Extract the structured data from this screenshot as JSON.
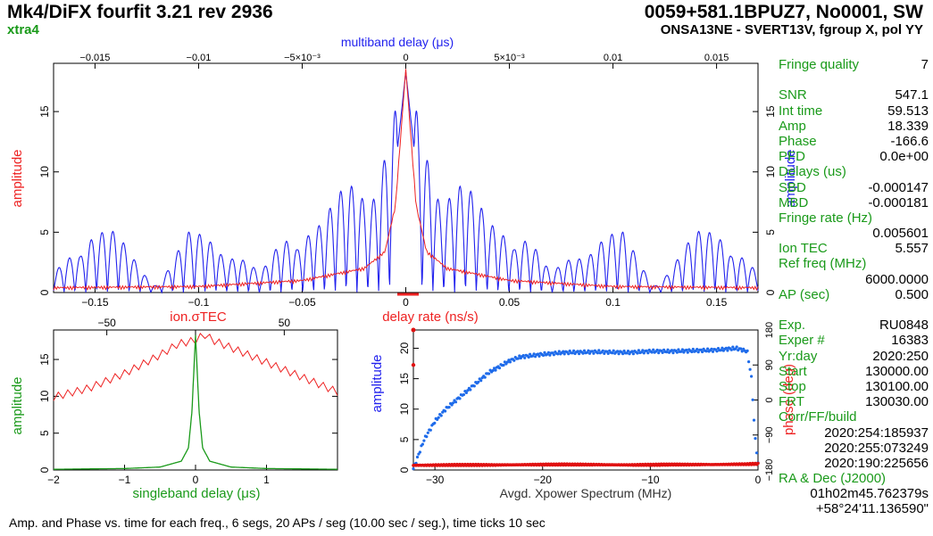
{
  "header": {
    "title": "Mk4/DiFX fourfit 3.21 rev 2936",
    "subtitle": "xtra4",
    "source": "0059+581.1BPUZ7, No0001, SW",
    "baseline": "ONSA13NE - SVERT13V, fgroup X, pol YY"
  },
  "footer": "Amp. and Phase vs. time for each freq., 6 segs, 20 APs / seg (10.00 sec / seg.), time ticks 10 sec",
  "colors": {
    "blue": "#2222ee",
    "red": "#ee2222",
    "green": "#1a9a1a",
    "mbd_bright": "#1e6bea",
    "phase_red": "#e01010"
  },
  "panel": {
    "rows": [
      {
        "label": "Fringe quality",
        "value": "7"
      },
      {
        "label": "",
        "value": ""
      },
      {
        "label": "SNR",
        "value": "547.1"
      },
      {
        "label": "Int time",
        "value": "59.513"
      },
      {
        "label": "Amp",
        "value": "18.339"
      },
      {
        "label": "Phase",
        "value": "-166.6"
      },
      {
        "label": "PFD",
        "value": "0.0e+00"
      },
      {
        "label": "Delays (us)",
        "value": ""
      },
      {
        "label": "SBD",
        "value": "-0.000147"
      },
      {
        "label": "MBD",
        "value": "-0.000181"
      },
      {
        "label": "Fringe rate (Hz)",
        "value": ""
      },
      {
        "label": "",
        "value": "0.005601"
      },
      {
        "label": "Ion TEC",
        "value": "5.557"
      },
      {
        "label": "Ref freq (MHz)",
        "value": ""
      },
      {
        "label": "",
        "value": "6000.0000"
      },
      {
        "label": "AP (sec)",
        "value": "0.500"
      },
      {
        "label": "",
        "value": ""
      },
      {
        "label": "Exp.",
        "value": "RU0848"
      },
      {
        "label": "Exper #",
        "value": "16383"
      },
      {
        "label": "Yr:day",
        "value": "2020:250"
      },
      {
        "label": "Start",
        "value": "130000.00"
      },
      {
        "label": "Stop",
        "value": "130100.00"
      },
      {
        "label": "FRT",
        "value": "130030.00"
      },
      {
        "label": "Corr/FF/build",
        "value": ""
      },
      {
        "label": "",
        "value": "2020:254:185937"
      },
      {
        "label": "",
        "value": "2020:255:073249"
      },
      {
        "label": "",
        "value": "2020:190:225656"
      },
      {
        "label": "RA & Dec (J2000)",
        "value": ""
      },
      {
        "label": "",
        "value": "01h02m45.762379s"
      },
      {
        "label": "",
        "value": "+58°24'11.136590\""
      }
    ]
  },
  "chart_data": [
    {
      "type": "line",
      "title": "",
      "xlabel": "delay rate (ns/s)",
      "x2label": "multiband delay (μs)",
      "ylabel": "amplitude",
      "y2label": "amplitude",
      "xlim": [
        -0.17,
        0.17
      ],
      "x2lim": [
        -0.017,
        0.017
      ],
      "ylim": [
        0,
        19
      ],
      "xticks": [
        "−0.15",
        "−0.1",
        "−0.05",
        "0",
        "0.05",
        "0.1",
        "0.15"
      ],
      "x2ticks": [
        "−0.015",
        "−0.01",
        "−5×10⁻³",
        "0",
        "5×10⁻³",
        "0.01",
        "0.015"
      ],
      "yticks": [
        "0",
        "5",
        "10",
        "15"
      ],
      "series": [
        {
          "color": "blue",
          "axis": "multiband delay",
          "peak": 18.3,
          "envelope_x": [
            -0.017,
            -0.0155,
            -0.014,
            -0.012,
            -0.0105,
            -0.009,
            -0.007,
            -0.0055,
            -0.004,
            -0.0025,
            -0.001,
            0,
            0.001,
            0.0025,
            0.004,
            0.0055,
            0.007,
            0.009,
            0.0105,
            0.012,
            0.014,
            0.0155,
            0.017
          ],
          "envelope_y": [
            1.5,
            6.0,
            5.0,
            0.8,
            5.0,
            5.2,
            1.5,
            6.5,
            6.0,
            10.5,
            13.5,
            18.3,
            13.5,
            10.5,
            6.0,
            6.5,
            1.5,
            5.2,
            5.0,
            0.8,
            5.0,
            6.0,
            1.5
          ]
        },
        {
          "color": "red",
          "axis": "delay rate",
          "peak": 18.3,
          "x": [
            -0.17,
            -0.1,
            -0.05,
            -0.02,
            -0.01,
            -0.005,
            0,
            0.005,
            0.01,
            0.02,
            0.05,
            0.1,
            0.17
          ],
          "y": [
            0.2,
            0.3,
            0.8,
            1.8,
            3.2,
            7.0,
            18.3,
            7.0,
            3.2,
            1.8,
            0.8,
            0.3,
            0.2
          ]
        }
      ]
    },
    {
      "type": "line",
      "title": "",
      "xlabel": "singleband delay (μs)",
      "x2label": "ion.σTEC",
      "ylabel": "amplitude",
      "xlim": [
        -2,
        2
      ],
      "x2lim": [
        -80,
        80
      ],
      "ylim": [
        0,
        19
      ],
      "xticks": [
        "−2",
        "−1",
        "0",
        "1"
      ],
      "x2ticks": [
        "−50",
        "0",
        "50"
      ],
      "yticks": [
        "0",
        "5",
        "10",
        "15"
      ],
      "series": [
        {
          "color": "green",
          "axis": "singleband delay",
          "x": [
            -2,
            -1,
            -0.5,
            -0.2,
            -0.1,
            -0.05,
            0,
            0.05,
            0.1,
            0.2,
            0.5,
            1,
            2
          ],
          "y": [
            0.1,
            0.2,
            0.4,
            1.2,
            3.0,
            8.0,
            18.3,
            8.0,
            3.0,
            1.2,
            0.4,
            0.2,
            0.1
          ]
        },
        {
          "color": "red",
          "axis": "ion TEC",
          "x": [
            -80,
            -60,
            -40,
            -20,
            -10,
            0,
            5,
            10,
            20,
            40,
            60,
            80
          ],
          "y": [
            9.8,
            11.0,
            13.0,
            15.5,
            17.0,
            17.5,
            18.3,
            17.5,
            16.5,
            14.5,
            12.5,
            10.5
          ]
        }
      ]
    },
    {
      "type": "scatter",
      "title": "",
      "xlabel": "Avgd. Xpower Spectrum (MHz)",
      "ylabel": "amplitude",
      "y2label": "phase (deg)",
      "xlim": [
        -32,
        0
      ],
      "ylim": [
        0,
        23
      ],
      "y2lim": [
        -180,
        180
      ],
      "xticks": [
        "−30",
        "−20",
        "−10",
        "0"
      ],
      "yticks": [
        "0",
        "5",
        "10",
        "15",
        "20"
      ],
      "y2ticks": [
        "−180",
        "−90",
        "0",
        "90",
        "180"
      ],
      "series": [
        {
          "color": "mbd_bright",
          "name": "",
          "axis": "amplitude",
          "x": [
            -32,
            -31,
            -30,
            -29,
            -28,
            -27,
            -26,
            -25,
            -24,
            -23,
            -22,
            -20,
            -18,
            -15,
            -12,
            -10,
            -8,
            -6,
            -4,
            -2,
            -1,
            -0.6,
            -0.3,
            0
          ],
          "y": [
            0.2,
            5.0,
            8.0,
            10.0,
            11.5,
            13.0,
            14.5,
            16.0,
            17.0,
            18.0,
            18.6,
            19.0,
            19.3,
            19.4,
            19.3,
            19.5,
            19.5,
            19.6,
            19.7,
            20.0,
            19.5,
            15.0,
            6.0,
            1.0
          ]
        },
        {
          "color": "phase_red",
          "name": "",
          "axis": "phase",
          "x": [
            -32,
            -28,
            -24,
            -20,
            -16,
            -12,
            -8,
            -4,
            -1,
            0
          ],
          "y": [
            -168,
            -167,
            -167,
            -166,
            -166,
            -167,
            -166,
            -166,
            -165,
            -164
          ]
        }
      ]
    }
  ]
}
